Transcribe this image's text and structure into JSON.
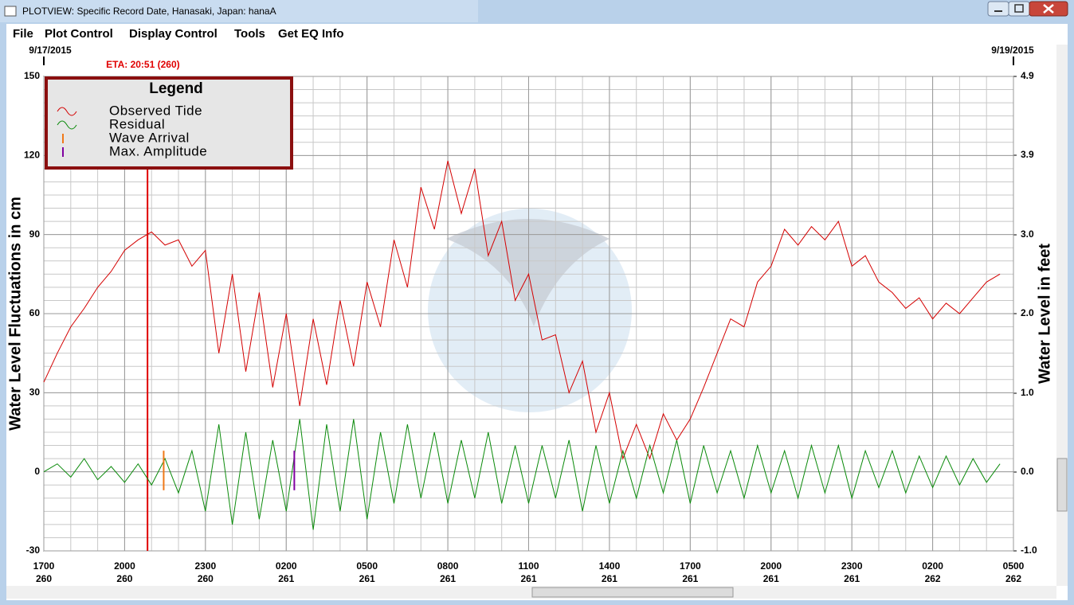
{
  "window": {
    "title": "PLOTVIEW: Specific Record Date, Hanasaki, Japan: hanaA"
  },
  "menu": [
    "File",
    "Plot Control",
    "Display Control",
    "Tools",
    "Get EQ Info"
  ],
  "chart_data": {
    "type": "line",
    "y_label": "Water Level Fluctuations in cm",
    "y2_label": "Water Level in feet",
    "start_date": "9/17/2015",
    "end_date": "9/19/2015",
    "legend_title": "Legend",
    "legend": "upper left",
    "grid": true,
    "minor_grid": {
      "x_step": 1,
      "y_step": 5
    },
    "xlim": [
      0,
      36
    ],
    "xticks": [
      {
        "value": 0,
        "label": "1700",
        "day": "260"
      },
      {
        "value": 3,
        "label": "2000",
        "day": "260"
      },
      {
        "value": 6,
        "label": "2300",
        "day": "260"
      },
      {
        "value": 9,
        "label": "0200",
        "day": "261"
      },
      {
        "value": 12,
        "label": "0500",
        "day": "261"
      },
      {
        "value": 15,
        "label": "0800",
        "day": "261"
      },
      {
        "value": 18,
        "label": "1100",
        "day": "261"
      },
      {
        "value": 21,
        "label": "1400",
        "day": "261"
      },
      {
        "value": 24,
        "label": "1700",
        "day": "261"
      },
      {
        "value": 27,
        "label": "2000",
        "day": "261"
      },
      {
        "value": 30,
        "label": "2300",
        "day": "261"
      },
      {
        "value": 33,
        "label": "0200",
        "day": "262"
      },
      {
        "value": 36,
        "label": "0500",
        "day": "262"
      }
    ],
    "ylim": [
      -30,
      150
    ],
    "yticks": [
      -30,
      0,
      30,
      60,
      90,
      120,
      150
    ],
    "y2lim": [
      -0.98,
      4.92
    ],
    "y2ticks": [
      {
        "value": -0.98,
        "label": "-1.0"
      },
      {
        "value": 0,
        "label": "0.0"
      },
      {
        "value": 0.98,
        "label": "1.0"
      },
      {
        "value": 1.97,
        "label": "2.0"
      },
      {
        "value": 2.95,
        "label": "3.0"
      },
      {
        "value": 3.94,
        "label": "3.9"
      },
      {
        "value": 4.92,
        "label": "4.9"
      }
    ],
    "eta": {
      "label": "ETA: 20:51 (260)",
      "x": 3.85,
      "color": "#e00000"
    },
    "x": [
      0,
      0.5,
      1,
      1.5,
      2,
      2.5,
      3,
      3.5,
      4,
      4.5,
      5,
      5.5,
      6,
      6.5,
      7,
      7.5,
      8,
      8.5,
      9,
      9.5,
      10,
      10.5,
      11,
      11.5,
      12,
      12.5,
      13,
      13.5,
      14,
      14.5,
      15,
      15.5,
      16,
      16.5,
      17,
      17.5,
      18,
      18.5,
      19,
      19.5,
      20,
      20.5,
      21,
      21.5,
      22,
      22.5,
      23,
      23.5,
      24,
      24.5,
      25,
      25.5,
      26,
      26.5,
      27,
      27.5,
      28,
      28.5,
      29,
      29.5,
      30,
      30.5,
      31,
      31.5,
      32,
      32.5,
      33,
      33.5,
      34,
      34.5,
      35,
      35.5
    ],
    "series": [
      {
        "name": "Observed Tide",
        "color": "#d40000",
        "values": [
          34,
          45,
          55,
          62,
          70,
          76,
          84,
          88,
          91,
          86,
          88,
          78,
          84,
          45,
          75,
          38,
          68,
          32,
          60,
          25,
          58,
          33,
          65,
          40,
          72,
          55,
          88,
          70,
          108,
          92,
          118,
          98,
          115,
          82,
          95,
          65,
          75,
          50,
          52,
          30,
          42,
          15,
          30,
          5,
          18,
          5,
          22,
          12,
          20,
          32,
          45,
          58,
          55,
          72,
          78,
          92,
          86,
          93,
          88,
          95,
          78,
          82,
          72,
          68,
          62,
          66,
          58,
          64,
          60,
          66,
          72,
          75
        ]
      },
      {
        "name": "Residual",
        "color": "#0a8a0a",
        "values": [
          0,
          3,
          -2,
          5,
          -3,
          2,
          -4,
          3,
          -5,
          5,
          -8,
          8,
          -15,
          18,
          -20,
          15,
          -18,
          12,
          -15,
          20,
          -22,
          18,
          -15,
          20,
          -18,
          15,
          -12,
          18,
          -10,
          15,
          -12,
          12,
          -10,
          15,
          -12,
          10,
          -12,
          10,
          -10,
          12,
          -15,
          10,
          -12,
          8,
          -10,
          10,
          -8,
          12,
          -12,
          10,
          -8,
          8,
          -10,
          10,
          -8,
          8,
          -10,
          10,
          -8,
          10,
          -10,
          8,
          -6,
          8,
          -8,
          6,
          -6,
          6,
          -5,
          5,
          -4,
          3
        ]
      }
    ],
    "markers": [
      {
        "name": "Wave Arrival",
        "color": "#f07818",
        "x": 4.45,
        "y": [
          -7,
          8
        ]
      },
      {
        "name": "Max. Amplitude",
        "color": "#8000a0",
        "x": 9.3,
        "y": [
          -7,
          8
        ]
      }
    ]
  }
}
